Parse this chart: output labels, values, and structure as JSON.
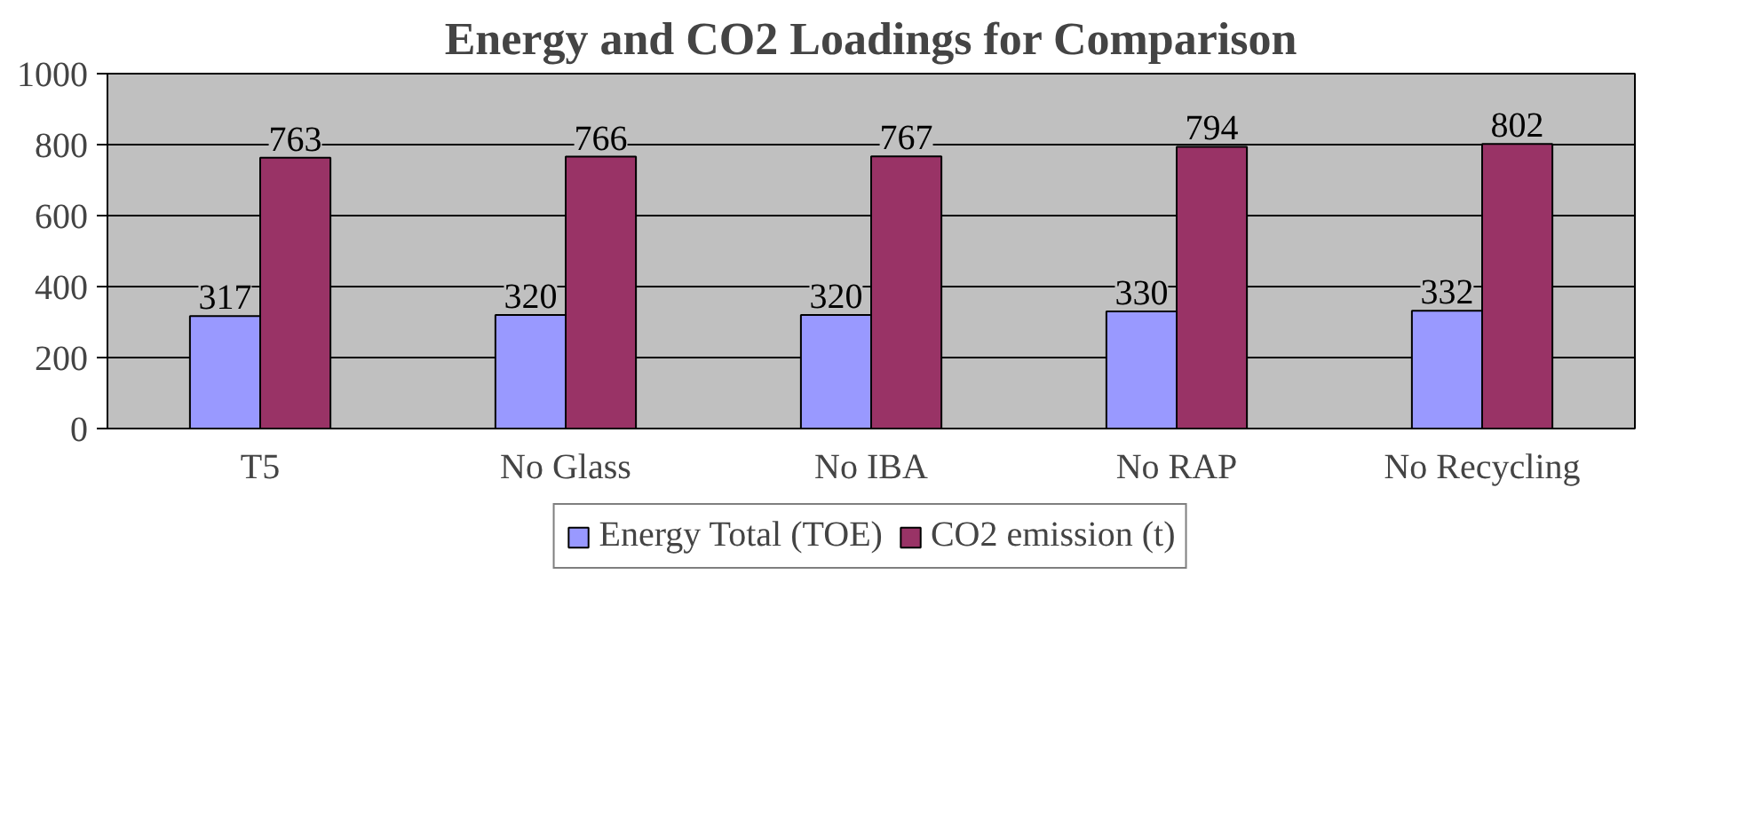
{
  "chart_data": {
    "type": "bar",
    "title": "Energy and CO2 Loadings for Comparison",
    "categories": [
      "T5",
      "No Glass",
      "No IBA",
      "No RAP",
      "No Recycling"
    ],
    "series": [
      {
        "name": "Energy Total (TOE)",
        "color": "#9999ff",
        "values": [
          317,
          320,
          320,
          330,
          332
        ]
      },
      {
        "name": "CO2 emission (t)",
        "color": "#993366",
        "values": [
          763,
          766,
          767,
          794,
          802
        ]
      }
    ],
    "ylim": [
      0,
      1000
    ],
    "yticks": [
      0,
      200,
      400,
      600,
      800,
      1000
    ],
    "grid": "y",
    "legend": "bottom",
    "data_labels": true
  }
}
